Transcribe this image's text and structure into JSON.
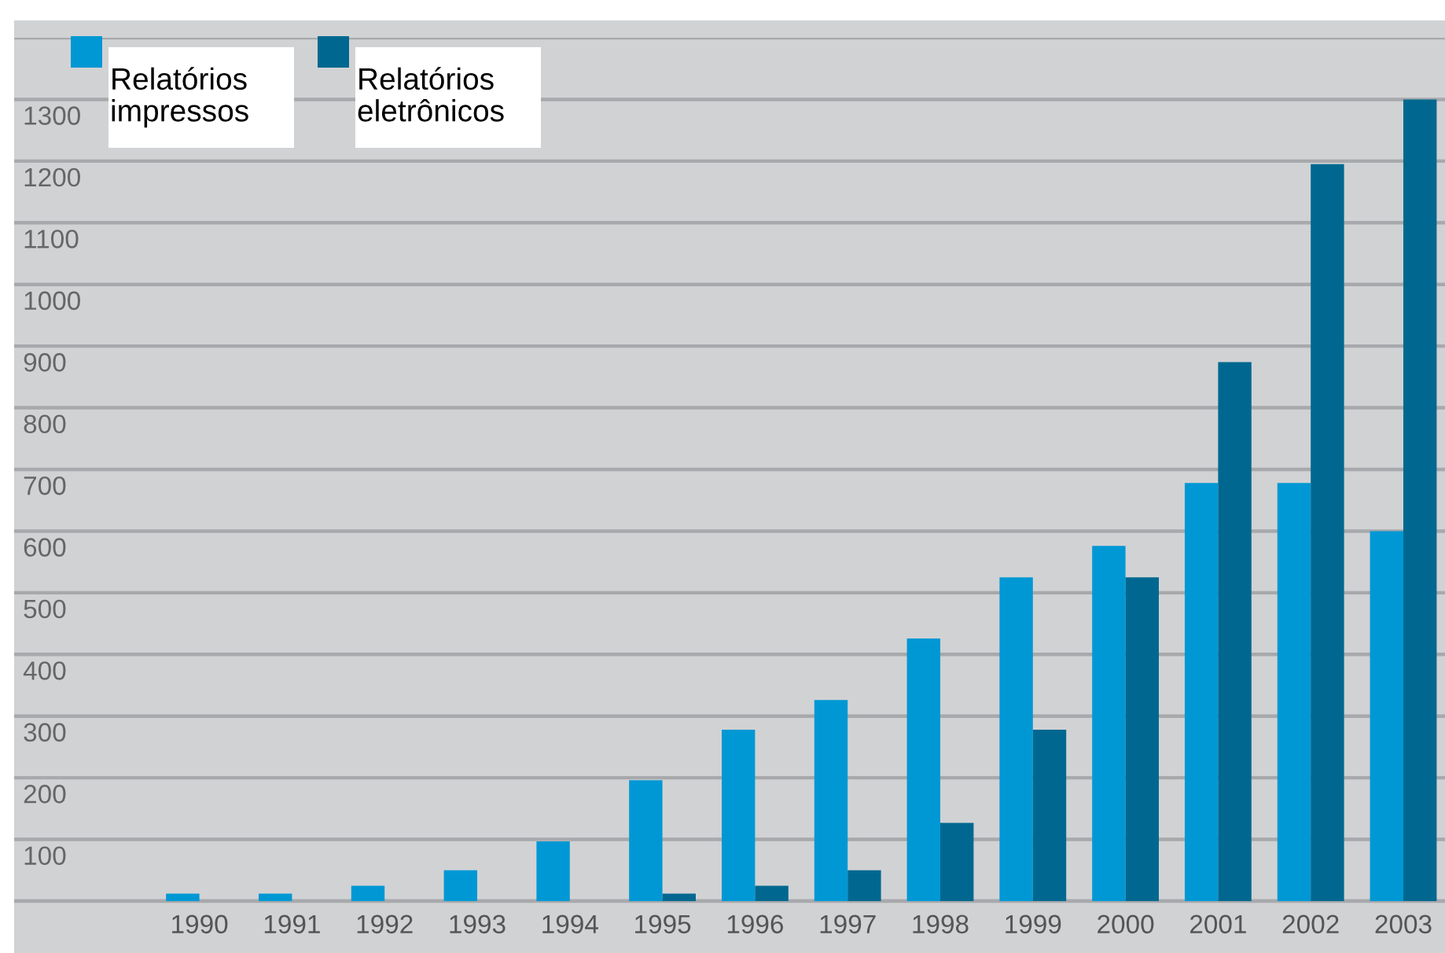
{
  "chart_data": {
    "type": "bar",
    "categories": [
      "1990",
      "1991",
      "1992",
      "1993",
      "1994",
      "1995",
      "1996",
      "1997",
      "1998",
      "1999",
      "2000",
      "2001",
      "2002",
      "2003"
    ],
    "series": [
      {
        "name": "Relatórios impressos",
        "color": "#0098d4",
        "values": [
          12,
          12,
          25,
          50,
          97,
          196,
          278,
          326,
          426,
          525,
          576,
          678,
          678,
          600
        ]
      },
      {
        "name": "Relatórios eletrônicos",
        "color": "#006890",
        "values": [
          null,
          null,
          null,
          null,
          null,
          12,
          25,
          50,
          127,
          278,
          525,
          874,
          1195,
          1300
        ]
      }
    ],
    "ylim": [
      0,
      1400
    ],
    "yticks": [
      {
        "value": 0,
        "label": null
      },
      100,
      200,
      300,
      400,
      500,
      600,
      700,
      800,
      900,
      1000,
      1100,
      1200,
      1300,
      {
        "value": 1400,
        "label": null
      }
    ],
    "grid": "y",
    "legend": "top left"
  }
}
